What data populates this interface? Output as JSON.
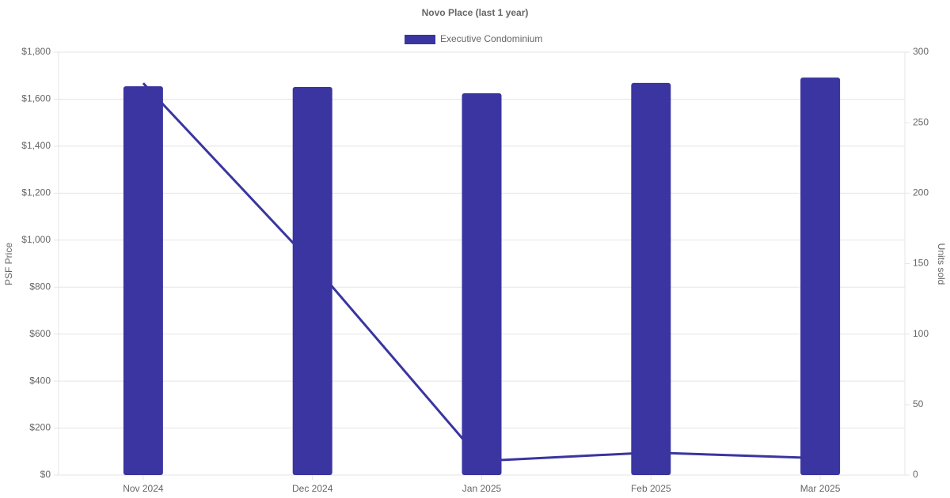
{
  "chart_data": {
    "type": "bar",
    "title": "Novo Place (last 1 year)",
    "categories": [
      "Nov 2024",
      "Dec 2024",
      "Jan 2025",
      "Feb 2025",
      "Mar 2025"
    ],
    "series": [
      {
        "name": "Executive Condominium",
        "type": "bar",
        "color": "#3a35a0",
        "values": [
          1655,
          1652,
          1625,
          1669,
          1692
        ]
      },
      {
        "type": "line",
        "axis": "y2",
        "color": "#3a35a0",
        "values": [
          278,
          150,
          10,
          16,
          12
        ]
      }
    ],
    "y_label": "PSF Price",
    "y2_label": "Units sold",
    "ylim": [
      0,
      1800
    ],
    "yticks": [
      {
        "value": 0,
        "label": "$0"
      },
      {
        "value": 200,
        "label": "$200"
      },
      {
        "value": 400,
        "label": "$400"
      },
      {
        "value": 600,
        "label": "$600"
      },
      {
        "value": 800,
        "label": "$800"
      },
      {
        "value": 1000,
        "label": "$1,000"
      },
      {
        "value": 1200,
        "label": "$1,200"
      },
      {
        "value": 1400,
        "label": "$1,400"
      },
      {
        "value": 1600,
        "label": "$1,600"
      },
      {
        "value": 1800,
        "label": "$1,800"
      }
    ],
    "y2lim": [
      0,
      300
    ],
    "y2ticks": [
      0,
      50,
      100,
      150,
      200,
      250,
      300
    ],
    "grid": true,
    "legend": "top"
  }
}
